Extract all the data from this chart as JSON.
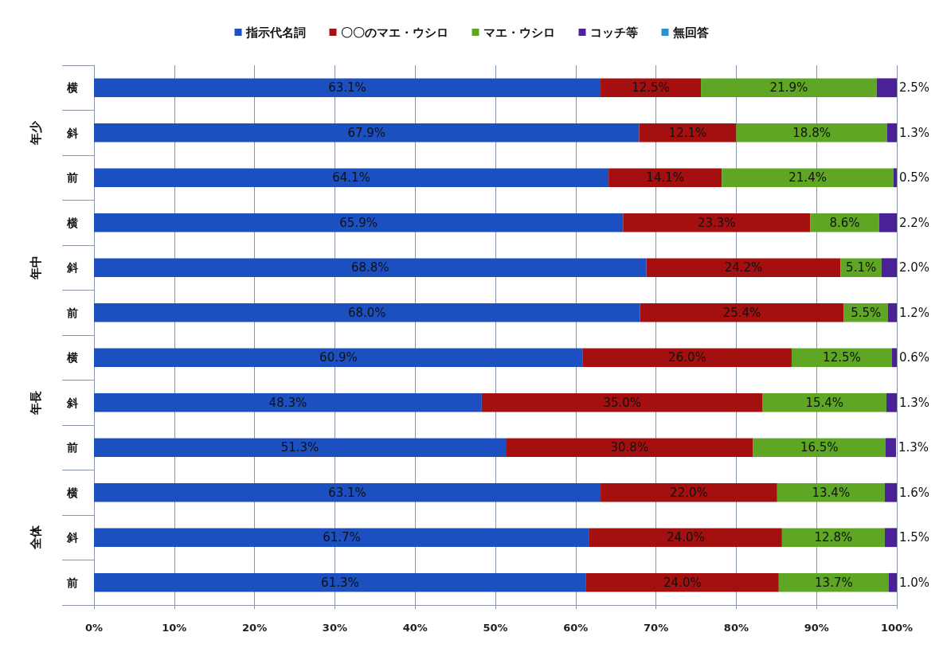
{
  "chart_data": {
    "type": "bar",
    "orientation": "horizontal",
    "stacked": true,
    "categories": [
      "横",
      "斜",
      "前",
      "横",
      "斜",
      "前",
      "横",
      "斜",
      "前",
      "横",
      "斜",
      "前"
    ],
    "annotations": [
      "年少",
      "年中",
      "年長",
      "全体"
    ],
    "series": [
      {
        "name": "指示代名詞",
        "color": "#1c4fc0",
        "values": [
          63.1,
          67.9,
          64.1,
          65.9,
          68.8,
          68.0,
          60.9,
          48.3,
          51.3,
          63.1,
          61.7,
          61.3
        ],
        "value_labels": [
          "63.1%",
          "67.9%",
          "64.1%",
          "65.9%",
          "68.8%",
          "68.0%",
          "60.9%",
          "48.3%",
          "51.3%",
          "63.1%",
          "61.7%",
          "61.3%"
        ]
      },
      {
        "name": "〇〇のマエ・ウシロ",
        "color": "#a3100f",
        "values": [
          12.5,
          12.1,
          14.1,
          23.3,
          24.2,
          25.4,
          26.0,
          35.0,
          30.8,
          22.0,
          24.0,
          24.0
        ],
        "value_labels": [
          "12.5%",
          "12.1%",
          "14.1%",
          "23.3%",
          "24.2%",
          "25.4%",
          "26.0%",
          "35.0%",
          "30.8%",
          "22.0%",
          "24.0%",
          "24.0%"
        ]
      },
      {
        "name": "マエ・ウシロ",
        "color": "#5ea623",
        "values": [
          21.9,
          18.8,
          21.4,
          8.6,
          5.1,
          5.5,
          12.5,
          15.4,
          16.5,
          13.4,
          12.8,
          13.7
        ],
        "value_labels": [
          "21.9%",
          "18.8%",
          "21.4%",
          "8.6%",
          "5.1%",
          "5.5%",
          "12.5%",
          "15.4%",
          "16.5%",
          "13.4%",
          "12.8%",
          "13.7%"
        ]
      },
      {
        "name": "コッチ等",
        "color": "#4a2196",
        "values": [
          2.5,
          1.3,
          0.5,
          2.2,
          2.0,
          1.2,
          0.6,
          1.3,
          1.3,
          1.6,
          1.5,
          1.0
        ],
        "value_labels": [
          "2.5%",
          "1.3%",
          "0.5%",
          "2.2%",
          "2.0%",
          "1.2%",
          "0.6%",
          "1.3%",
          "1.3%",
          "1.6%",
          "1.5%",
          "1.0%"
        ]
      },
      {
        "name": "無回答",
        "color": "#2b8fd0",
        "values": [
          null,
          null,
          null,
          null,
          null,
          null,
          null,
          null,
          null,
          null,
          null,
          null
        ]
      }
    ],
    "xlim": [
      0,
      100
    ],
    "xticks": [
      {
        "value": 0,
        "label": "0%"
      },
      {
        "value": 10,
        "label": "10%"
      },
      {
        "value": 20,
        "label": "20%"
      },
      {
        "value": 30,
        "label": "30%"
      },
      {
        "value": 40,
        "label": "40%"
      },
      {
        "value": 50,
        "label": "50%"
      },
      {
        "value": 60,
        "label": "60%"
      },
      {
        "value": 70,
        "label": "70%"
      },
      {
        "value": 80,
        "label": "80%"
      },
      {
        "value": 90,
        "label": "90%"
      },
      {
        "value": 100,
        "label": "100%"
      }
    ],
    "grid": "x",
    "legend": "top"
  }
}
